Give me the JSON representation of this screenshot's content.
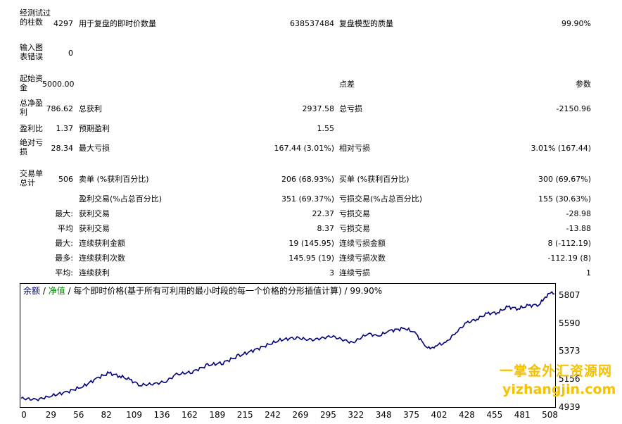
{
  "report": {
    "bars_label": "经测试过的柱数",
    "bars_value": "4297",
    "ticks_label": "用于复盘的即时价数量",
    "ticks_value": "638537484",
    "quality_label": "复盘模型的质量",
    "quality_value": "99.90%",
    "mismatch_label": "输入图表错误",
    "mismatch_value": "0",
    "deposit_label": "起始资金",
    "deposit_value": "5000.00",
    "spread_label": "点差",
    "params_label": "参数",
    "net_label": "总净盈利",
    "net_value": "786.62",
    "gross_profit_label": "总获利",
    "gross_profit_value": "2937.58",
    "gross_loss_label": "总亏损",
    "gross_loss_value": "-2150.96",
    "pf_label": "盈利比",
    "pf_value": "1.37",
    "payoff_label": "预期盈利",
    "payoff_value": "1.55",
    "abs_dd_label": "绝对亏损",
    "abs_dd_value": "28.34",
    "max_dd_label": "最大亏损",
    "max_dd_value": "167.44 (3.01%)",
    "rel_dd_label": "相对亏损",
    "rel_dd_value": "3.01% (167.44)",
    "trades_label": "交易单总计",
    "trades_value": "506",
    "short_label": "卖单 (%获利百分比)",
    "short_value": "206 (68.93%)",
    "long_label": "买单 (%获利百分比)",
    "long_value": "300 (69.67%)",
    "profit_trades_label": "盈利交易(%占总百分比)",
    "profit_trades_value": "351 (69.37%)",
    "loss_trades_label": "亏损交易(%占总百分比)",
    "loss_trades_value": "155 (30.63%)",
    "largest_prefix": "最大:",
    "largest_profit_label": "获利交易",
    "largest_profit_value": "22.37",
    "largest_loss_label": "亏损交易",
    "largest_loss_value": "-28.98",
    "average_prefix": "平均",
    "average_profit_label": "获利交易",
    "average_profit_value": "8.37",
    "average_loss_label": "亏损交易",
    "average_loss_value": "-13.88",
    "max_consec_prefix": "最大:",
    "max_consec_wins_label": "连续获利金额",
    "max_consec_wins_value": "19 (145.95)",
    "max_consec_losses_label": "连续亏损金额",
    "max_consec_losses_value": "8 (-112.19)",
    "maximal_prefix": "最多:",
    "maximal_wins_label": "连续获利次数",
    "maximal_wins_value": "145.95 (19)",
    "maximal_losses_label": "连续亏损次数",
    "maximal_losses_value": "-112.19 (8)",
    "avg_consec_prefix": "平均:",
    "avg_consec_wins_label": "连续获利",
    "avg_consec_wins_value": "3",
    "avg_consec_losses_label": "连续亏损",
    "avg_consec_losses_value": "1"
  },
  "chart_title": {
    "balance": "余额",
    "sep1": " / ",
    "equity": "净值",
    "rest": " / 每个即时价格(基于所有可利用的最小时段的每一个价格的分形插值计算) / 99.90%"
  },
  "watermark": {
    "line1": "一掌金外汇资源网",
    "line2": "yizhangjin.com"
  },
  "colors": {
    "balance": "#00007f",
    "equity": "#008000",
    "watermark": "#f6c100"
  },
  "chart_data": {
    "type": "line",
    "x_ticks": [
      "0",
      "29",
      "56",
      "82",
      "109",
      "136",
      "162",
      "189",
      "215",
      "242",
      "269",
      "295",
      "322",
      "348",
      "375",
      "402",
      "428",
      "455",
      "481",
      "508"
    ],
    "y_ticks": [
      "5807",
      "5590",
      "5373",
      "5156",
      "4939"
    ],
    "xlim": [
      0,
      515
    ],
    "ylim": [
      4939,
      5850
    ],
    "series": [
      {
        "color": "#00007f",
        "x": [
          0,
          15,
          30,
          45,
          60,
          75,
          85,
          95,
          105,
          115,
          130,
          140,
          150,
          165,
          180,
          195,
          210,
          230,
          250,
          265,
          280,
          300,
          320,
          335,
          345,
          355,
          370,
          380,
          390,
          395,
          400,
          410,
          420,
          430,
          440,
          450,
          460,
          470,
          480,
          490,
          500,
          505,
          510,
          515
        ],
        "y": [
          5000,
          4990,
          5020,
          5050,
          5090,
          5160,
          5190,
          5170,
          5140,
          5100,
          5110,
          5130,
          5180,
          5200,
          5250,
          5270,
          5320,
          5380,
          5440,
          5460,
          5440,
          5470,
          5420,
          5490,
          5470,
          5510,
          5530,
          5500,
          5400,
          5370,
          5400,
          5420,
          5500,
          5570,
          5600,
          5640,
          5650,
          5690,
          5680,
          5700,
          5710,
          5750,
          5800,
          5790
        ]
      }
    ]
  }
}
